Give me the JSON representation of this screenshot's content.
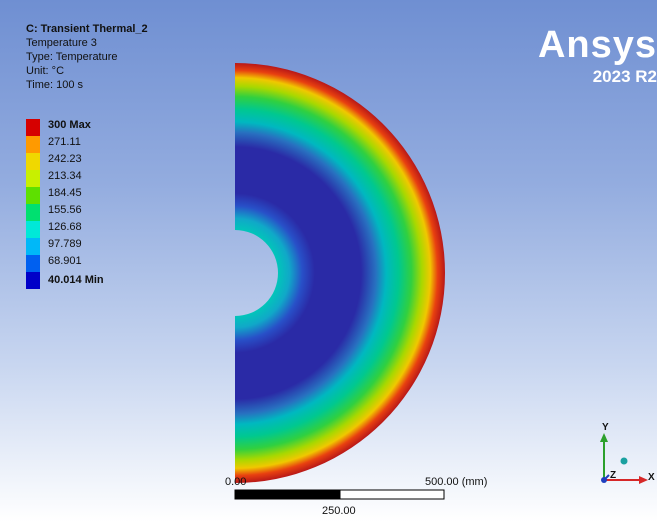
{
  "info": {
    "title": "C: Transient Thermal_2",
    "line1": "Temperature 3",
    "line2": "Type: Temperature",
    "line3": "Unit: °C",
    "line4": "Time: 100 s"
  },
  "legend": {
    "items": [
      {
        "label": "300 Max",
        "color": "#d60000"
      },
      {
        "label": "271.11",
        "color": "#ff9a00"
      },
      {
        "label": "242.23",
        "color": "#f0d800"
      },
      {
        "label": "213.34",
        "color": "#c8f000"
      },
      {
        "label": "184.45",
        "color": "#5ee000"
      },
      {
        "label": "155.56",
        "color": "#00e070"
      },
      {
        "label": "126.68",
        "color": "#00e8d8"
      },
      {
        "label": "97.789",
        "color": "#00b8f8"
      },
      {
        "label": "68.901",
        "color": "#0060f0"
      },
      {
        "label": "40.014 Min",
        "color": "#0000c8"
      }
    ]
  },
  "logo": {
    "brand": "Ansys",
    "version": "2023 R2"
  },
  "scale": {
    "left": "0.00",
    "right": "500.00 (mm)",
    "middle": "250.00"
  },
  "axes": {
    "x": "X",
    "y": "Y",
    "z": "Z"
  }
}
